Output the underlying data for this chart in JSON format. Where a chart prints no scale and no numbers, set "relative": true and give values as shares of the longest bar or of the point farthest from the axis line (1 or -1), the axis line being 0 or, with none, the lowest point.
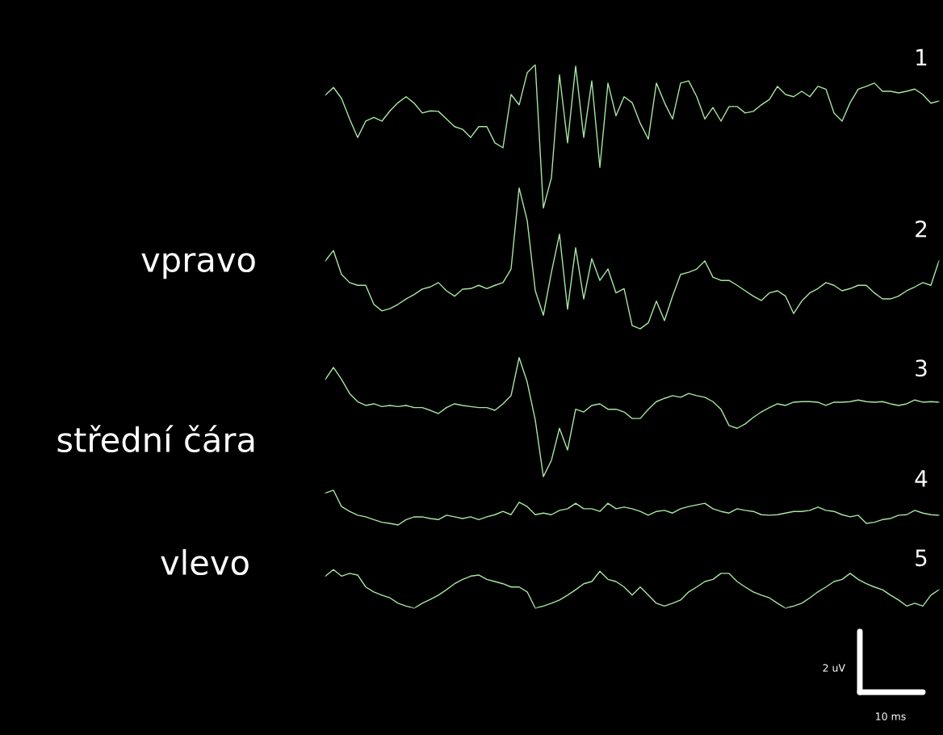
{
  "chart_data": {
    "type": "line",
    "relative": true,
    "categories": [
      null,
      null,
      null,
      null,
      null,
      null,
      null,
      null,
      null,
      null,
      null,
      null,
      null,
      null,
      null,
      null,
      null,
      null,
      null,
      null,
      null,
      null,
      null,
      null,
      null,
      null,
      null,
      null,
      null,
      null,
      null,
      null,
      null,
      null,
      null,
      null,
      null,
      null,
      null,
      null,
      null,
      null,
      null,
      null,
      null,
      null,
      null,
      null,
      null,
      null,
      null,
      null,
      null,
      null,
      null,
      null,
      null,
      null,
      null,
      null,
      null,
      null,
      null,
      null,
      null,
      null,
      null,
      null,
      null,
      null,
      null,
      null,
      null,
      null,
      null,
      null,
      null
    ],
    "series": [
      {
        "name": "1",
        "color": "#a8e6a2",
        "values": [
          0.944,
          0.958,
          0.938,
          0.9,
          0.866,
          0.896,
          0.903,
          0.896,
          0.915,
          0.93,
          0.941,
          0.929,
          0.911,
          0.915,
          0.914,
          0.9,
          0.886,
          0.881,
          0.866,
          0.886,
          0.886,
          0.856,
          0.847,
          0.945,
          0.926,
          0.985,
          1.0,
          0.736,
          0.792,
          0.981,
          0.856,
          0.997,
          0.866,
          0.97,
          0.811,
          0.966,
          0.906,
          0.941,
          0.93,
          0.892,
          0.863,
          0.966,
          0.93,
          0.9,
          0.966,
          0.97,
          0.941,
          0.9,
          0.921,
          0.896,
          0.923,
          0.923,
          0.911,
          0.914,
          0.926,
          0.936,
          0.96,
          0.945,
          0.941,
          0.951,
          0.941,
          0.96,
          0.955,
          0.911,
          0.896,
          0.93,
          0.955,
          0.96,
          0.966,
          0.951,
          0.951,
          0.948,
          0.951,
          0.955,
          0.945,
          0.929,
          0.933
        ]
      },
      {
        "name": "2",
        "color": "#a8e6a2",
        "values": [
          0.639,
          0.658,
          0.614,
          0.599,
          0.594,
          0.594,
          0.559,
          0.547,
          0.551,
          0.559,
          0.569,
          0.577,
          0.587,
          0.591,
          0.599,
          0.584,
          0.574,
          0.587,
          0.588,
          0.594,
          0.588,
          0.594,
          0.599,
          0.624,
          0.773,
          0.713,
          0.584,
          0.539,
          0.618,
          0.688,
          0.55,
          0.663,
          0.569,
          0.643,
          0.603,
          0.624,
          0.58,
          0.588,
          0.52,
          0.514,
          0.525,
          0.565,
          0.529,
          0.574,
          0.614,
          0.618,
          0.624,
          0.639,
          0.609,
          0.603,
          0.603,
          0.594,
          0.584,
          0.574,
          0.566,
          0.58,
          0.584,
          0.574,
          0.542,
          0.565,
          0.58,
          0.588,
          0.599,
          0.594,
          0.584,
          0.588,
          0.594,
          0.594,
          0.58,
          0.569,
          0.569,
          0.574,
          0.584,
          0.591,
          0.599,
          0.594,
          0.639
        ]
      },
      {
        "name": "3",
        "color": "#a8e6a2",
        "values": [
          0.421,
          0.443,
          0.421,
          0.395,
          0.38,
          0.373,
          0.376,
          0.371,
          0.373,
          0.371,
          0.373,
          0.369,
          0.369,
          0.364,
          0.358,
          0.369,
          0.376,
          0.373,
          0.371,
          0.369,
          0.369,
          0.364,
          0.376,
          0.391,
          0.461,
          0.416,
          0.346,
          0.242,
          0.272,
          0.331,
          0.291,
          0.366,
          0.361,
          0.373,
          0.376,
          0.366,
          0.366,
          0.361,
          0.349,
          0.349,
          0.366,
          0.38,
          0.386,
          0.391,
          0.388,
          0.395,
          0.391,
          0.388,
          0.38,
          0.366,
          0.336,
          0.331,
          0.339,
          0.351,
          0.361,
          0.369,
          0.376,
          0.373,
          0.379,
          0.38,
          0.38,
          0.379,
          0.373,
          0.379,
          0.379,
          0.38,
          0.383,
          0.38,
          0.379,
          0.38,
          0.376,
          0.373,
          0.376,
          0.383,
          0.379,
          0.38,
          0.379
        ]
      },
      {
        "name": "4",
        "color": "#a8e6a2",
        "values": [
          0.212,
          0.217,
          0.187,
          0.178,
          0.171,
          0.168,
          0.163,
          0.158,
          0.156,
          0.153,
          0.163,
          0.168,
          0.168,
          0.165,
          0.163,
          0.171,
          0.168,
          0.165,
          0.168,
          0.163,
          0.168,
          0.172,
          0.178,
          0.172,
          0.195,
          0.187,
          0.172,
          0.175,
          0.172,
          0.18,
          0.183,
          0.193,
          0.183,
          0.183,
          0.178,
          0.193,
          0.183,
          0.186,
          0.183,
          0.178,
          0.171,
          0.178,
          0.18,
          0.175,
          0.183,
          0.187,
          0.19,
          0.193,
          0.183,
          0.178,
          0.175,
          0.183,
          0.18,
          0.178,
          0.172,
          0.171,
          0.172,
          0.175,
          0.178,
          0.178,
          0.18,
          0.186,
          0.18,
          0.178,
          0.172,
          0.168,
          0.171,
          0.156,
          0.158,
          0.163,
          0.165,
          0.171,
          0.172,
          0.18,
          0.175,
          0.172,
          0.171
        ]
      },
      {
        "name": "5",
        "color": "#a8e6a2",
        "values": [
          0.059,
          0.071,
          0.059,
          0.064,
          0.061,
          0.039,
          0.03,
          0.024,
          0.019,
          0.009,
          0.004,
          0,
          0.009,
          0.016,
          0.024,
          0.034,
          0.045,
          0.053,
          0.059,
          0.061,
          0.053,
          0.049,
          0.045,
          0.039,
          0.039,
          0.03,
          0,
          0.004,
          0.009,
          0.015,
          0.024,
          0.034,
          0.045,
          0.049,
          0.068,
          0.053,
          0.049,
          0.039,
          0.024,
          0.039,
          0.024,
          0.009,
          0.004,
          0.009,
          0.015,
          0.03,
          0.039,
          0.049,
          0.053,
          0.064,
          0.064,
          0.049,
          0.039,
          0.03,
          0.024,
          0.019,
          0.009,
          0,
          0.004,
          0.009,
          0.019,
          0.03,
          0.039,
          0.049,
          0.053,
          0.064,
          0.053,
          0.045,
          0.039,
          0.034,
          0.024,
          0.015,
          0.004,
          0.009,
          0.004,
          0.024,
          0.034
        ]
      }
    ],
    "annotations": [
      "vpravo",
      "střední čára",
      "vlevo",
      "2 uV",
      "10 ms"
    ]
  }
}
